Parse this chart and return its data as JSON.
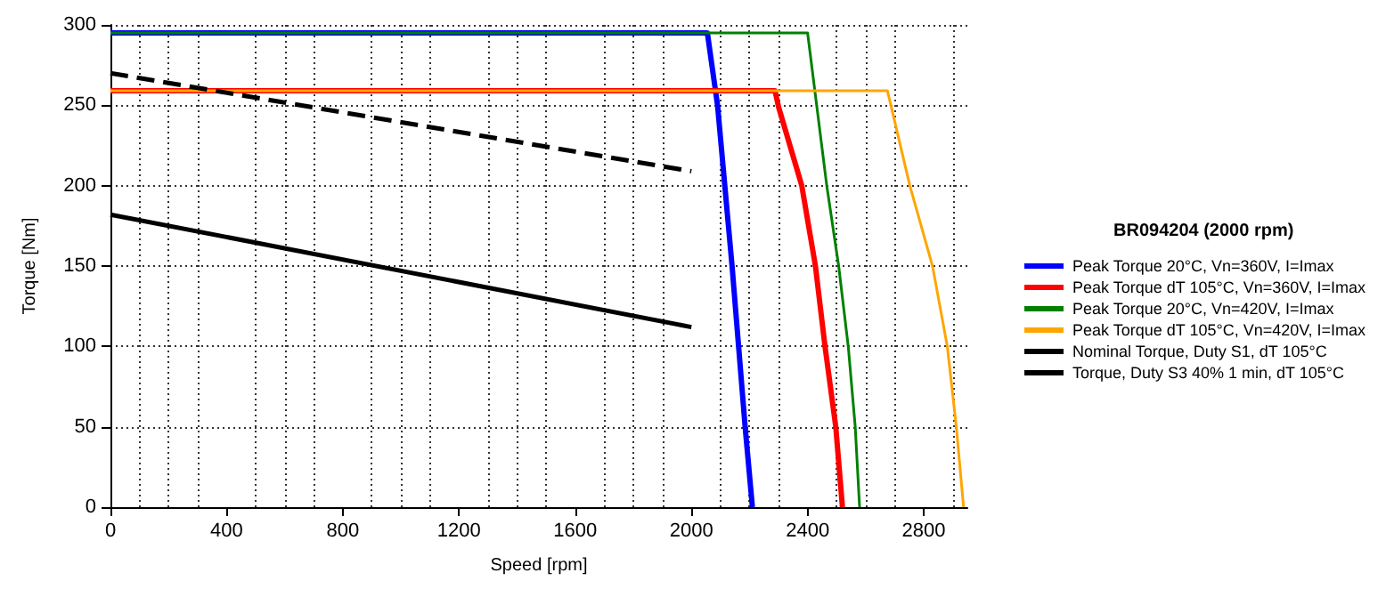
{
  "chart_data": {
    "type": "line",
    "xlabel": "Speed [rpm]",
    "ylabel": "Torque [Nm]",
    "legend_title": "BR094204 (2000 rpm)",
    "legend": "right",
    "grid": true,
    "marker": "none",
    "xlim": [
      0,
      2950
    ],
    "xticks": [
      0,
      400,
      800,
      1200,
      1600,
      2000,
      2400,
      2800
    ],
    "ylim": [
      0,
      300
    ],
    "yticks": [
      0,
      50,
      100,
      150,
      200,
      250,
      300
    ],
    "series": [
      {
        "name": "Peak Torque 20°C, Vn=360V, I=Imax",
        "color": "#0000ff",
        "x": [
          0,
          2055,
          2090,
          2140,
          2185,
          2210
        ],
        "values": [
          295,
          295,
          250,
          150,
          50,
          0
        ]
      },
      {
        "name": "Peak Torque dT 105°C, Vn=360V, I=Imax",
        "color": "#ff0000",
        "x": [
          0,
          2288,
          2300,
          2380,
          2427,
          2460,
          2497,
          2520
        ],
        "values": [
          259,
          259,
          249,
          200,
          150,
          100,
          50,
          0
        ]
      },
      {
        "name": "Peak Torque 20°C, Vn=420V, I=Imax",
        "color": "#008000",
        "x": [
          0,
          2400,
          2466,
          2507,
          2540,
          2564,
          2579
        ],
        "values": [
          295,
          295,
          200,
          150,
          100,
          50,
          0
        ]
      },
      {
        "name": "Peak Torque dT 105°C, Vn=420V, I=Imax",
        "color": "#ffa500",
        "x": [
          0,
          2675,
          2752,
          2830,
          2881,
          2912,
          2937
        ],
        "values": [
          259,
          259,
          200,
          150,
          100,
          50,
          0
        ]
      },
      {
        "name": "Nominal Torque, Duty S1, dT 105°C",
        "color": "#000000",
        "x": [
          0,
          2000
        ],
        "values": [
          182,
          112
        ]
      },
      {
        "name": "Torque, Duty S3 40% 1 min, dT 105°C",
        "color": "#000000",
        "line_style": "dashed",
        "x": [
          0,
          2000
        ],
        "values": [
          270,
          209
        ]
      }
    ]
  }
}
